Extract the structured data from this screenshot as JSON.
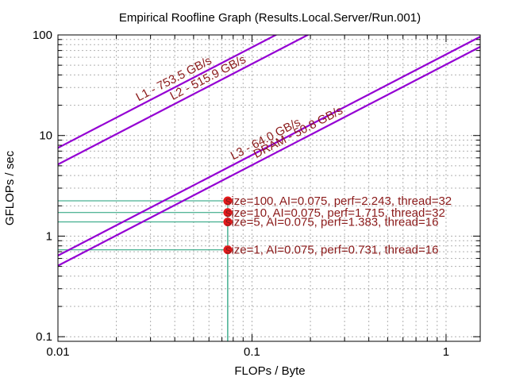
{
  "chart_data": {
    "type": "line",
    "title": "Empirical Roofline Graph (Results.Local.Server/Run.001)",
    "xlabel": "FLOPs / Byte",
    "ylabel": "GFLOPs / sec",
    "x_scale": "log",
    "y_scale": "log",
    "xlim": [
      0.01,
      1.5
    ],
    "ylim": [
      0.09,
      100
    ],
    "x_ticks": [
      {
        "value": 0.01,
        "label": "0.01"
      },
      {
        "value": 0.1,
        "label": "0.1"
      },
      {
        "value": 1,
        "label": "1"
      }
    ],
    "y_ticks": [
      {
        "value": 0.1,
        "label": "0.1"
      },
      {
        "value": 1,
        "label": "1"
      },
      {
        "value": 10,
        "label": "10"
      },
      {
        "value": 100,
        "label": "100"
      }
    ],
    "grid": true,
    "roofs": [
      {
        "name": "L1",
        "bandwidth": 753.5,
        "label": "L1 - 753.5 GB/s",
        "color": "#9400d3"
      },
      {
        "name": "L2",
        "bandwidth": 515.9,
        "label": "L2 - 515.9 GB/s",
        "color": "#9400d3"
      },
      {
        "name": "L3",
        "bandwidth": 64.0,
        "label": "L3 - 64.0 GB/s",
        "color": "#9400d3"
      },
      {
        "name": "DRAM",
        "bandwidth": 50.8,
        "label": "DRAM - 50.8 GB/s",
        "color": "#9400d3"
      }
    ],
    "points": [
      {
        "size": 100,
        "ai": 0.075,
        "perf": 2.243,
        "thread": 32,
        "label": "size=100, AI=0.075, perf=2.243, thread=32"
      },
      {
        "size": 10,
        "ai": 0.075,
        "perf": 1.715,
        "thread": 32,
        "label": "size=10, AI=0.075, perf=1.715, thread=32"
      },
      {
        "size": 5,
        "ai": 0.075,
        "perf": 1.383,
        "thread": 16,
        "label": "size=5, AI=0.075, perf=1.383, thread=16"
      },
      {
        "size": 1,
        "ai": 0.075,
        "perf": 0.731,
        "thread": 16,
        "label": "size=1, AI=0.075, perf=0.731, thread=16"
      }
    ],
    "colors": {
      "roof": "#9400d3",
      "point": "#e41a1c",
      "point_label": "#8b1a1a",
      "guide": "#1b9e77",
      "grid": "#b0b0b0"
    }
  }
}
